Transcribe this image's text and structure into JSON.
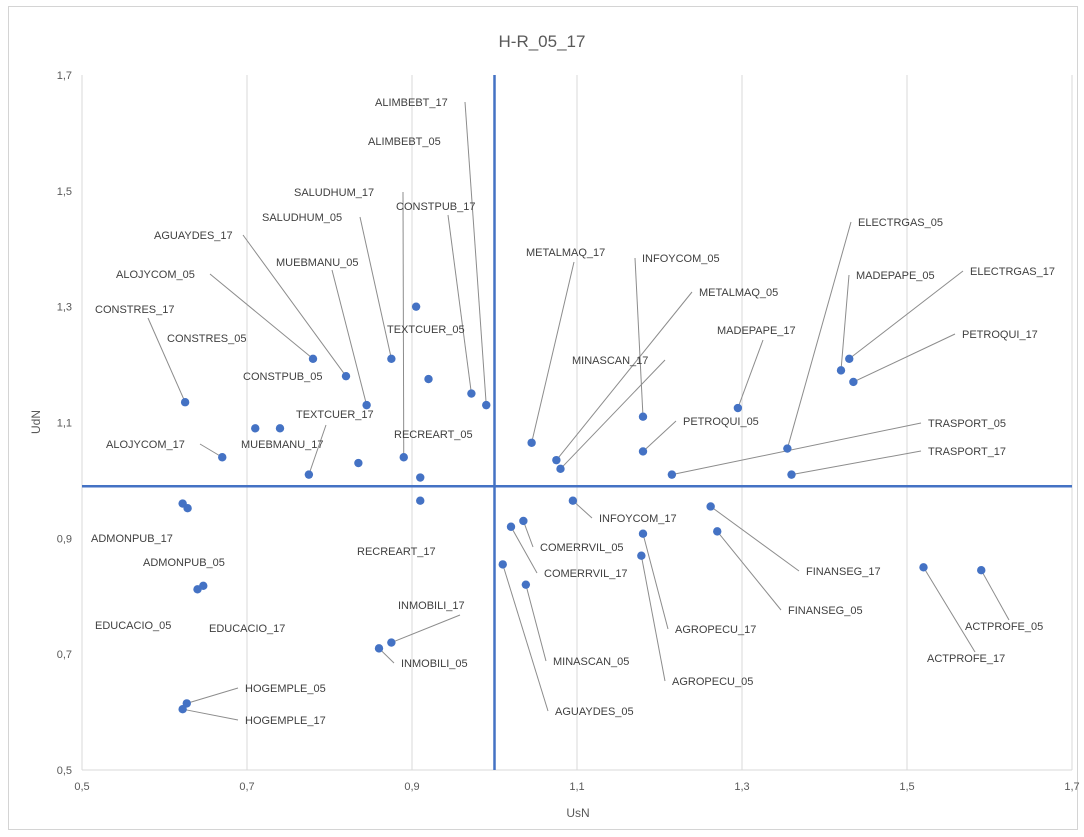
{
  "chart_data": {
    "type": "scatter",
    "title": "H-R_05_17",
    "xlabel": "UsN",
    "ylabel": "UdN",
    "xlim": [
      0.5,
      1.7
    ],
    "ylim": [
      0.5,
      1.7
    ],
    "x_ticks": [
      "0,5",
      "0,7",
      "0,9",
      "1,1",
      "1,3",
      "1,5",
      "1,7"
    ],
    "y_ticks": [
      "0,5",
      "0,7",
      "0,9",
      "1,1",
      "1,3",
      "1,5",
      "1,7"
    ],
    "grid": "vertical",
    "reference_lines": {
      "x": 1.0,
      "y": 0.99,
      "color": "#4472c4"
    },
    "point_color": "#4472c4",
    "points": [
      {
        "label": "ALIMBEBT_17",
        "x": 0.99,
        "y": 1.13
      },
      {
        "label": "ALIMBEBT_05",
        "x": 0.905,
        "y": 1.3
      },
      {
        "label": "SALUDHUM_17",
        "x": 0.89,
        "y": 1.04
      },
      {
        "label": "SALUDHUM_05",
        "x": 0.875,
        "y": 1.21
      },
      {
        "label": "CONSTPUB_17",
        "x": 0.972,
        "y": 1.15
      },
      {
        "label": "AGUAYDES_17",
        "x": 0.82,
        "y": 1.18
      },
      {
        "label": "MUEBMANU_05",
        "x": 0.845,
        "y": 1.13
      },
      {
        "label": "ALOJYCOM_05",
        "x": 0.78,
        "y": 1.21
      },
      {
        "label": "CONSTRES_17",
        "x": 0.625,
        "y": 1.135
      },
      {
        "label": "CONSTRES_05",
        "x": 0.71,
        "y": 1.09
      },
      {
        "label": "CONSTPUB_05",
        "x": 0.74,
        "y": 1.09
      },
      {
        "label": "TEXTCUER_05",
        "x": 0.92,
        "y": 1.175
      },
      {
        "label": "TEXTCUER_17",
        "x": 0.835,
        "y": 1.03
      },
      {
        "label": "MUEBMANU_17",
        "x": 0.775,
        "y": 1.01
      },
      {
        "label": "ALOJYCOM_17",
        "x": 0.67,
        "y": 1.04
      },
      {
        "label": "RECREART_05",
        "x": 0.91,
        "y": 1.005
      },
      {
        "label": "RECREART_17",
        "x": 0.91,
        "y": 0.965
      },
      {
        "label": "METALMAQ_17",
        "x": 1.045,
        "y": 1.065
      },
      {
        "label": "INFOYCOM_05",
        "x": 1.18,
        "y": 1.11
      },
      {
        "label": "METALMAQ_05",
        "x": 1.075,
        "y": 1.035
      },
      {
        "label": "MINASCAN_17",
        "x": 1.08,
        "y": 1.02
      },
      {
        "label": "PETROQUI_05",
        "x": 1.18,
        "y": 1.05
      },
      {
        "label": "MADEPAPE_17",
        "x": 1.295,
        "y": 1.125
      },
      {
        "label": "ELECTRGAS_05",
        "x": 1.355,
        "y": 1.055
      },
      {
        "label": "MADEPAPE_05",
        "x": 1.42,
        "y": 1.19
      },
      {
        "label": "ELECTRGAS_17",
        "x": 1.43,
        "y": 1.21
      },
      {
        "label": "PETROQUI_17",
        "x": 1.435,
        "y": 1.17
      },
      {
        "label": "TRASPORT_05",
        "x": 1.215,
        "y": 1.01
      },
      {
        "label": "TRASPORT_17",
        "x": 1.36,
        "y": 1.01
      },
      {
        "label": "ADMONPUB_17",
        "x": 0.622,
        "y": 0.96
      },
      {
        "label": "ADMONPUB_05",
        "x": 0.628,
        "y": 0.952
      },
      {
        "label": "EDUCACIO_05",
        "x": 0.64,
        "y": 0.812
      },
      {
        "label": "EDUCACIO_17",
        "x": 0.647,
        "y": 0.818
      },
      {
        "label": "INMOBILI_17",
        "x": 0.875,
        "y": 0.72
      },
      {
        "label": "INMOBILI_05",
        "x": 0.86,
        "y": 0.71
      },
      {
        "label": "HOGEMPLE_05",
        "x": 0.627,
        "y": 0.615
      },
      {
        "label": "HOGEMPLE_17",
        "x": 0.622,
        "y": 0.605
      },
      {
        "label": "INFOYCOM_17",
        "x": 1.095,
        "y": 0.965
      },
      {
        "label": "COMERRVIL_05",
        "x": 1.035,
        "y": 0.93
      },
      {
        "label": "COMERRVIL_17",
        "x": 1.02,
        "y": 0.92
      },
      {
        "label": "MINASCAN_05",
        "x": 1.038,
        "y": 0.82
      },
      {
        "label": "AGUAYDES_05",
        "x": 1.01,
        "y": 0.855
      },
      {
        "label": "AGROPECU_17",
        "x": 1.18,
        "y": 0.908
      },
      {
        "label": "AGROPECU_05",
        "x": 1.178,
        "y": 0.87
      },
      {
        "label": "FINANSEG_17",
        "x": 1.262,
        "y": 0.955
      },
      {
        "label": "FINANSEG_05",
        "x": 1.27,
        "y": 0.912
      },
      {
        "label": "ACTPROFE_17",
        "x": 1.52,
        "y": 0.85
      },
      {
        "label": "ACTPROFE_05",
        "x": 1.59,
        "y": 0.845
      }
    ]
  }
}
